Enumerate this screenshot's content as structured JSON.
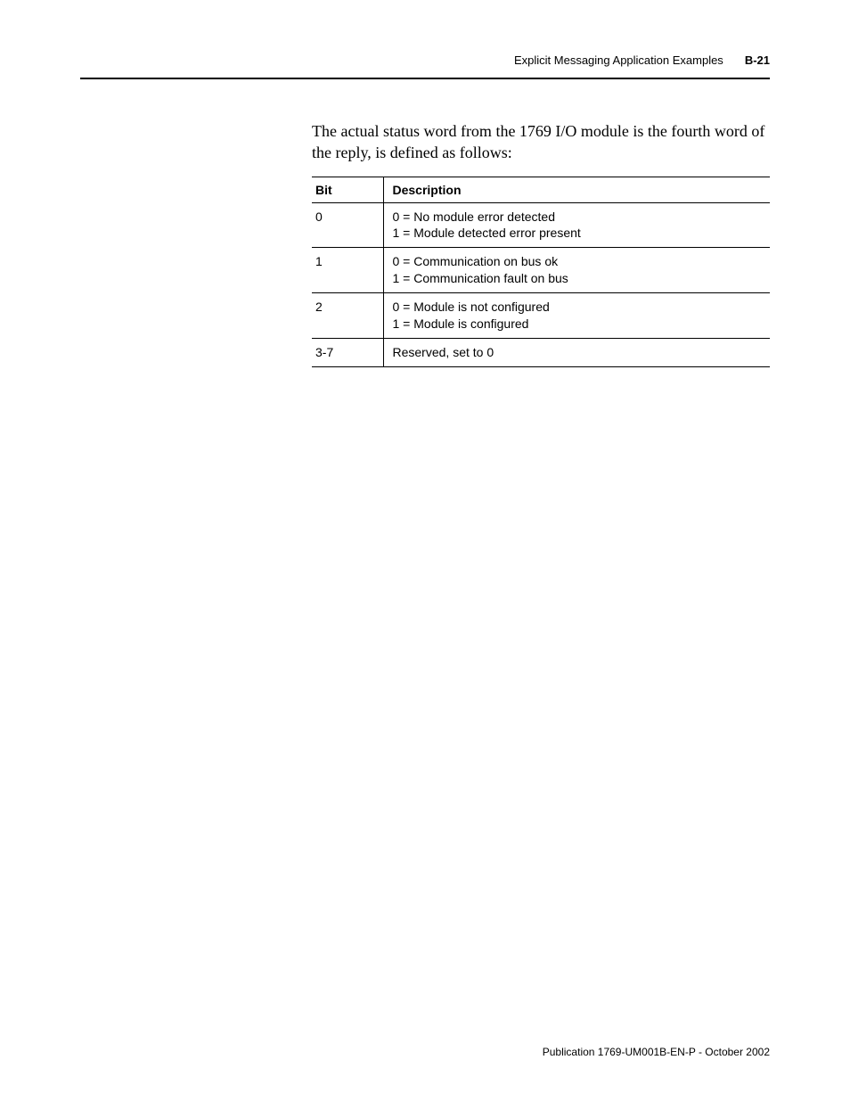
{
  "header": {
    "section_title": "Explicit Messaging Application Examples",
    "page_number": "B-21"
  },
  "intro": "The actual status word from the 1769 I/O module is the fourth word of the reply, is defined as follows:",
  "table": {
    "columns": {
      "bit": "Bit",
      "description": "Description"
    },
    "rows": [
      {
        "bit": "0",
        "desc_line1": "0 = No module error detected",
        "desc_line2": "1 = Module detected error present"
      },
      {
        "bit": "1",
        "desc_line1": "0 = Communication on bus ok",
        "desc_line2": "1 = Communication fault on bus"
      },
      {
        "bit": "2",
        "desc_line1": "0 = Module is not configured",
        "desc_line2": "1 = Module is configured"
      },
      {
        "bit": "3-7",
        "desc_line1": "Reserved, set to 0",
        "desc_line2": ""
      }
    ]
  },
  "footer": "Publication 1769-UM001B-EN-P - October 2002"
}
